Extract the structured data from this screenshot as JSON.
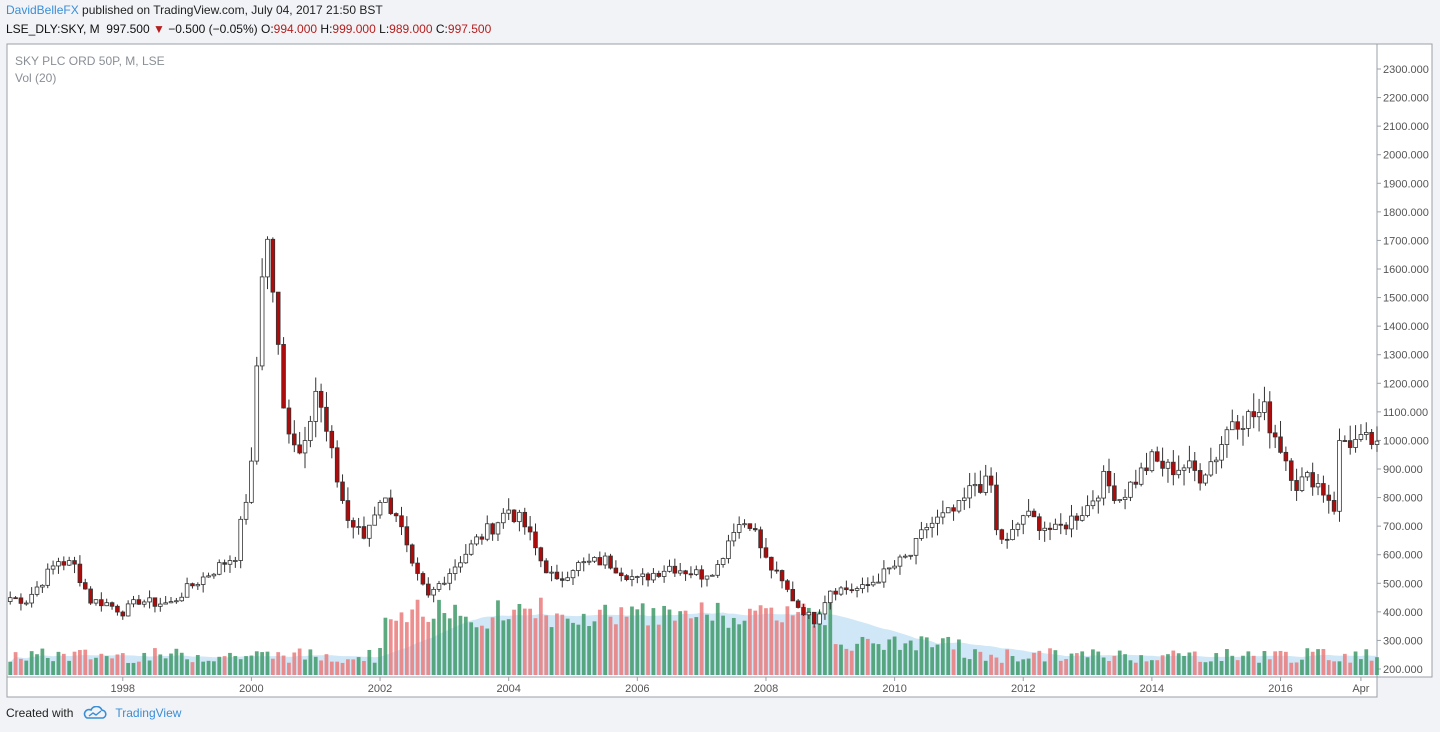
{
  "header": {
    "author": "DavidBelleFX",
    "published": "published on TradingView.com, July 04, 2017 21:50 BST",
    "symbol_line": "LSE_DLY:SKY, M",
    "last": "997.500",
    "change": "−0.500 (−0.05%)",
    "o_label": "O:",
    "o_value": "994.000",
    "h_label": "H:",
    "h_value": "999.000",
    "l_label": "L:",
    "l_value": "989.000",
    "c_label": "C:",
    "c_value": "997.500",
    "down_arrow_icon": "triangle-down-icon"
  },
  "legend": {
    "instrument": "SKY PLC ORD 50P, M, LSE",
    "volume": "Vol (20)"
  },
  "footer": {
    "created_with": "Created with",
    "brand": "TradingView",
    "logo_icon": "tradingview-cloud-icon"
  },
  "colors": {
    "up_body": "#ffffff",
    "down_body": "#b10a0a",
    "wick": "#333333",
    "vol_up": "#3f9a6a",
    "vol_down": "#ea7b7b",
    "vol_ma": "#a7d3ef",
    "axis_text": "#555555",
    "frame": "#9aa0a8"
  },
  "chart_data": {
    "type": "candlestick",
    "title": "SKY PLC ORD 50P, M, LSE",
    "interval": "monthly",
    "y_axis": {
      "side": "right",
      "ticks": [
        "2300.000",
        "2200.000",
        "2100.000",
        "2000.000",
        "1900.000",
        "1800.000",
        "1700.000",
        "1600.000",
        "1500.000",
        "1400.000",
        "1300.000",
        "1200.000",
        "1100.000",
        "1000.000",
        "900.000",
        "800.000",
        "700.000",
        "600.000",
        "500.000",
        "400.000",
        "300.000",
        "200.000"
      ],
      "range": [
        200,
        2300
      ]
    },
    "x_axis": {
      "ticks": [
        "1998",
        "2000",
        "2002",
        "2004",
        "2006",
        "2008",
        "2010",
        "2012",
        "2014",
        "2016",
        "Apr"
      ],
      "range_years": [
        1996.2,
        2017.5
      ]
    },
    "grid": false,
    "volume_ma_period": 20,
    "ohlc_anchors": {
      "dates": [
        1996.25,
        1996.5,
        1997.0,
        1997.25,
        1997.5,
        1997.75,
        1998.0,
        1998.25,
        1998.5,
        1998.75,
        1999.0,
        1999.5,
        1999.75,
        2000.0,
        2000.08,
        2000.17,
        2000.25,
        2000.33,
        2000.42,
        2000.5,
        2000.75,
        2001.0,
        2001.25,
        2001.5,
        2001.75,
        2002.0,
        2002.25,
        2002.5,
        2002.75,
        2003.0,
        2003.5,
        2003.75,
        2004.0,
        2004.25,
        2004.5,
        2004.75,
        2005.0,
        2005.5,
        2006.0,
        2006.5,
        2007.0,
        2007.25,
        2007.5,
        2007.75,
        2008.0,
        2008.25,
        2008.5,
        2008.75,
        2009.0,
        2009.5,
        2009.75,
        2010.0,
        2010.25,
        2010.5,
        2011.0,
        2011.25,
        2011.5,
        2011.58,
        2011.75,
        2012.0,
        2012.5,
        2013.0,
        2013.25,
        2013.5,
        2014.0,
        2014.25,
        2014.5,
        2014.75,
        2015.0,
        2015.25,
        2015.5,
        2015.75,
        2016.0,
        2016.25,
        2016.5,
        2016.75,
        2016.83,
        2016.92,
        2017.0,
        2017.25,
        2017.5
      ],
      "close": [
        450,
        440,
        580,
        560,
        440,
        430,
        400,
        440,
        430,
        430,
        480,
        560,
        600,
        900,
        1250,
        1620,
        1690,
        1540,
        1300,
        1100,
        960,
        1180,
        940,
        720,
        660,
        800,
        750,
        550,
        450,
        520,
        650,
        700,
        760,
        700,
        580,
        500,
        560,
        580,
        510,
        560,
        530,
        560,
        700,
        720,
        580,
        500,
        420,
        370,
        480,
        480,
        520,
        560,
        600,
        700,
        760,
        850,
        840,
        680,
        640,
        740,
        680,
        770,
        860,
        800,
        930,
        900,
        910,
        880,
        950,
        1080,
        1080,
        1100,
        980,
        850,
        870,
        800,
        760,
        990,
        1000,
        990,
        997.5
      ]
    },
    "volume_note": "volume bars scaled in relative units (no volume axis printed)"
  }
}
